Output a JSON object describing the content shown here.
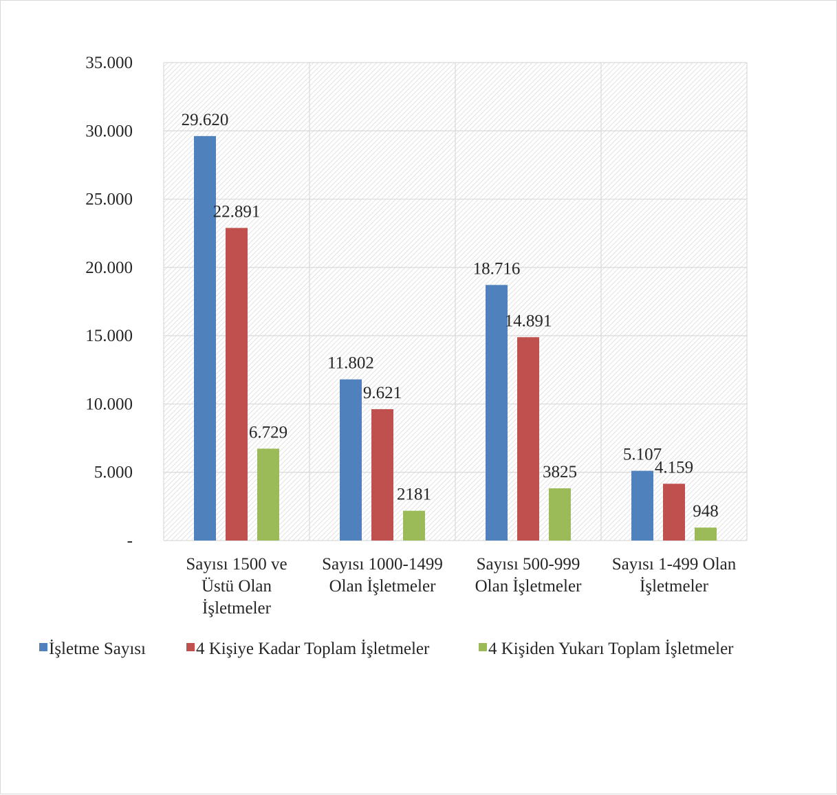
{
  "chart_data": {
    "type": "bar",
    "categories": [
      [
        "Sayısı 1500 ve",
        "Üstü Olan",
        "İşletmeler"
      ],
      [
        "Sayısı 1000-1499",
        "Olan İşletmeler"
      ],
      [
        "Sayısı 500-999",
        "Olan İşletmeler"
      ],
      [
        "Sayısı 1-499 Olan",
        "İşletmeler"
      ]
    ],
    "series": [
      {
        "name": "İşletme Sayısı",
        "color": "#4f81bd",
        "values": [
          29620,
          11802,
          18716,
          5107
        ],
        "labels": [
          "29.620",
          "11.802",
          "18.716",
          "5.107"
        ]
      },
      {
        "name": "4 Kişiye Kadar Toplam İşletmeler",
        "color": "#c0504d",
        "values": [
          22891,
          9621,
          14891,
          4159
        ],
        "labels": [
          "22.891",
          "9.621",
          "14.891",
          "4.159"
        ]
      },
      {
        "name": "4 Kişiden Yukarı Toplam İşletmeler",
        "color": "#9bbb59",
        "values": [
          6729,
          2181,
          3825,
          948
        ],
        "labels": [
          "6.729",
          "2181",
          "3825",
          "948"
        ]
      }
    ],
    "yticks": [
      0,
      5000,
      10000,
      15000,
      20000,
      25000,
      30000,
      35000
    ],
    "ytick_labels": [
      "-",
      "5.000",
      "10.000",
      "15.000",
      "20.000",
      "25.000",
      "30.000",
      "35.000"
    ],
    "ylim": [
      0,
      35000
    ],
    "grid": true,
    "plot_background": "hatched",
    "legend_position": "bottom",
    "title": "",
    "xlabel": "",
    "ylabel": ""
  }
}
